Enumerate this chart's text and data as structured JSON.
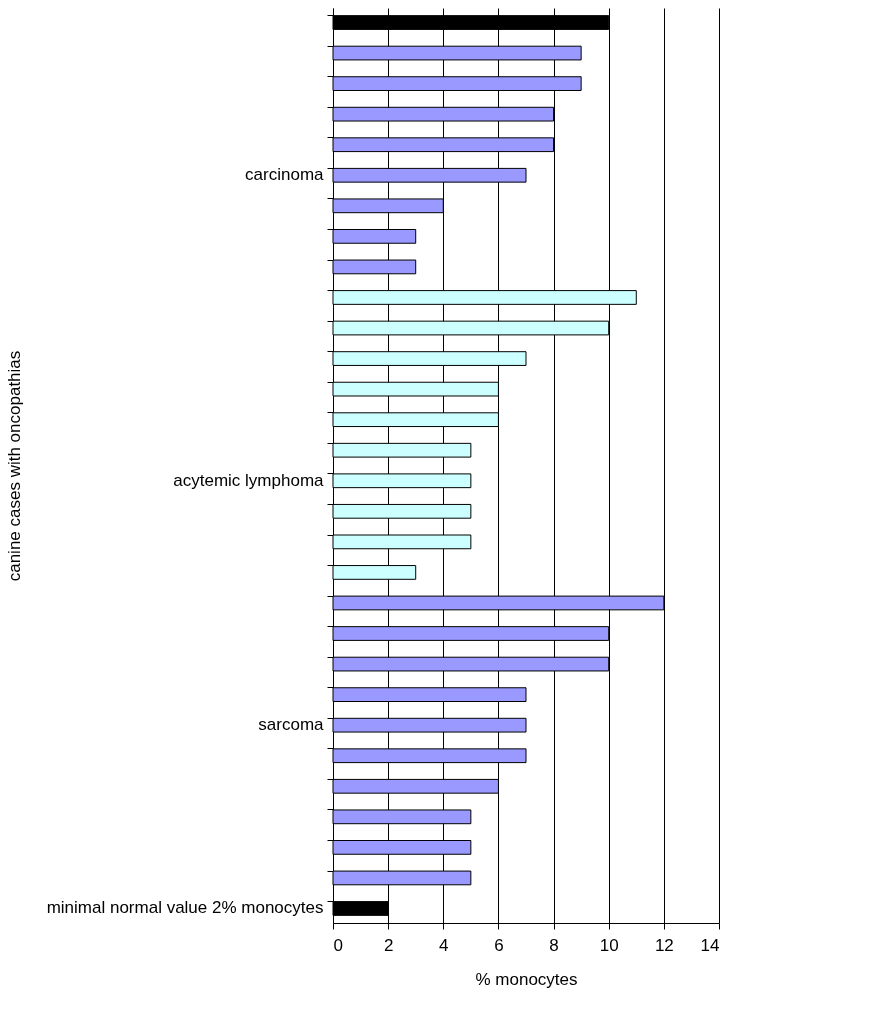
{
  "chart_data": {
    "type": "bar",
    "orientation": "horizontal",
    "xlabel": "% monocytes",
    "ylabel": "canine cases with oncopathias",
    "categories": [
      null,
      null,
      null,
      null,
      null,
      "carcinoma",
      null,
      null,
      null,
      null,
      null,
      null,
      null,
      null,
      null,
      "acytemic lymphoma",
      null,
      null,
      null,
      null,
      null,
      null,
      null,
      "sarcoma",
      null,
      null,
      null,
      null,
      null,
      "minimal normal value 2% monocytes"
    ],
    "values": [
      10,
      9,
      9,
      8,
      8,
      7,
      4,
      3,
      3,
      11,
      10,
      7,
      6,
      6,
      5,
      5,
      5,
      5,
      3,
      12,
      10,
      10,
      7,
      7,
      7,
      6,
      5,
      5,
      5,
      2
    ],
    "colors": [
      "#000000",
      "#9999ff",
      "#9999ff",
      "#9999ff",
      "#9999ff",
      "#9999ff",
      "#9999ff",
      "#9999ff",
      "#9999ff",
      "#ccffff",
      "#ccffff",
      "#ccffff",
      "#ccffff",
      "#ccffff",
      "#ccffff",
      "#ccffff",
      "#ccffff",
      "#ccffff",
      "#ccffff",
      "#9999ff",
      "#9999ff",
      "#9999ff",
      "#9999ff",
      "#9999ff",
      "#9999ff",
      "#9999ff",
      "#9999ff",
      "#9999ff",
      "#9999ff",
      "#000000"
    ],
    "xlim": [
      0,
      14
    ],
    "xticks": [
      0,
      2,
      4,
      6,
      8,
      10,
      12,
      14
    ],
    "grid": "x"
  }
}
